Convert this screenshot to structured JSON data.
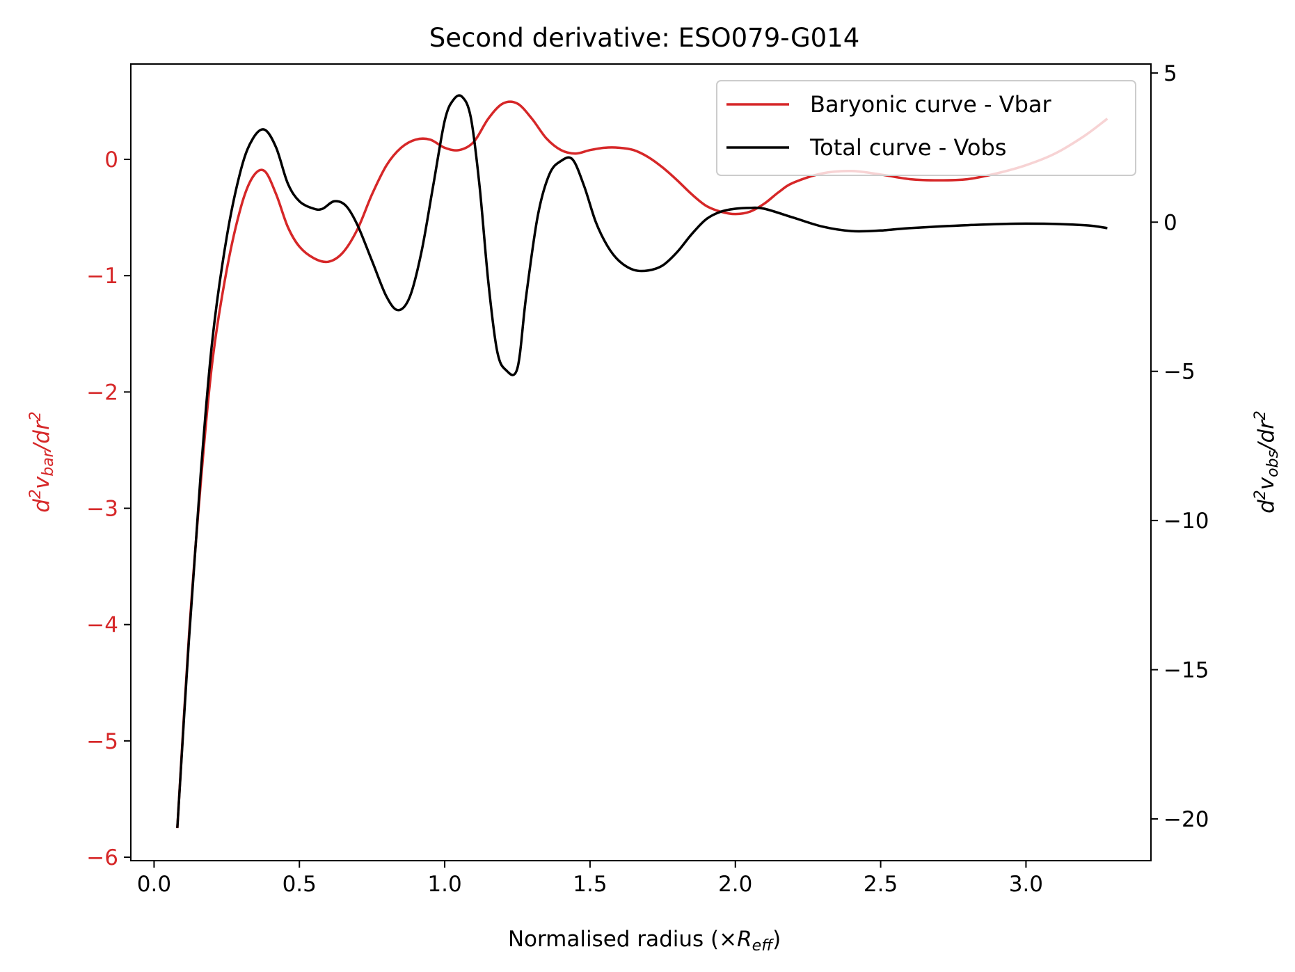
{
  "chart_data": {
    "type": "line",
    "title": "Second derivative: ESO079-G014",
    "xlabel": "Normalised radius (×R_eff)",
    "xlabel_parts": {
      "prefix": "Normalised radius (×",
      "var": "R",
      "sub": "eff",
      "suffix": ")"
    },
    "ylabel_left": "d²v_bar/dr²",
    "ylabel_left_parts": {
      "d": "d",
      "sup": "2",
      "v": "v",
      "sub": "bar",
      "rest": "/dr",
      "sup2": "2"
    },
    "ylabel_right": "d²v_obs/dr²",
    "ylabel_right_parts": {
      "d": "d",
      "sup": "2",
      "v": "v",
      "sub": "obs",
      "rest": "/dr",
      "sup2": "2"
    },
    "xlim": [
      -0.08,
      3.43
    ],
    "ylim_left": [
      -6.03,
      0.82
    ],
    "ylim_right": [
      -21.4,
      5.3
    ],
    "x_ticks": [
      0.0,
      0.5,
      1.0,
      1.5,
      2.0,
      2.5,
      3.0
    ],
    "x_tick_labels": [
      "0.0",
      "0.5",
      "1.0",
      "1.5",
      "2.0",
      "2.5",
      "3.0"
    ],
    "y_left_ticks": [
      -6,
      -5,
      -4,
      -3,
      -2,
      -1,
      0
    ],
    "y_left_tick_labels": [
      "−6",
      "−5",
      "−4",
      "−3",
      "−2",
      "−1",
      "0"
    ],
    "y_right_ticks": [
      -20,
      -15,
      -10,
      -5,
      0,
      5
    ],
    "y_right_tick_labels": [
      "−20",
      "−15",
      "−10",
      "−5",
      "0",
      "5"
    ],
    "legend_position": "top-right",
    "colors": {
      "bar": "#d62728",
      "obs": "#000000"
    },
    "series": [
      {
        "name": "Baryonic curve - Vbar",
        "axis": "left",
        "color": "#d62728",
        "x": [
          0.08,
          0.12,
          0.16,
          0.2,
          0.25,
          0.3,
          0.34,
          0.38,
          0.42,
          0.46,
          0.5,
          0.55,
          0.6,
          0.65,
          0.7,
          0.75,
          0.8,
          0.85,
          0.9,
          0.95,
          1.0,
          1.05,
          1.1,
          1.15,
          1.2,
          1.25,
          1.3,
          1.35,
          1.4,
          1.45,
          1.5,
          1.55,
          1.6,
          1.65,
          1.7,
          1.75,
          1.8,
          1.85,
          1.9,
          1.95,
          2.0,
          2.05,
          2.1,
          2.15,
          2.2,
          2.3,
          2.4,
          2.5,
          2.6,
          2.7,
          2.8,
          2.9,
          3.0,
          3.1,
          3.2,
          3.28
        ],
        "y": [
          -5.75,
          -4.1,
          -2.8,
          -1.75,
          -0.95,
          -0.4,
          -0.15,
          -0.1,
          -0.3,
          -0.58,
          -0.75,
          -0.85,
          -0.88,
          -0.8,
          -0.6,
          -0.3,
          -0.05,
          0.1,
          0.17,
          0.17,
          0.1,
          0.08,
          0.15,
          0.35,
          0.48,
          0.48,
          0.35,
          0.18,
          0.08,
          0.05,
          0.08,
          0.1,
          0.1,
          0.08,
          0.02,
          -0.07,
          -0.18,
          -0.3,
          -0.4,
          -0.45,
          -0.47,
          -0.45,
          -0.38,
          -0.28,
          -0.2,
          -0.12,
          -0.1,
          -0.13,
          -0.17,
          -0.18,
          -0.17,
          -0.12,
          -0.05,
          0.05,
          0.2,
          0.35
        ]
      },
      {
        "name": "Total curve - Vobs",
        "axis": "right",
        "color": "#000000",
        "x": [
          0.08,
          0.12,
          0.16,
          0.2,
          0.25,
          0.3,
          0.34,
          0.38,
          0.42,
          0.46,
          0.5,
          0.55,
          0.58,
          0.62,
          0.66,
          0.7,
          0.75,
          0.8,
          0.84,
          0.88,
          0.92,
          0.96,
          1.0,
          1.03,
          1.06,
          1.09,
          1.12,
          1.15,
          1.18,
          1.21,
          1.25,
          1.28,
          1.32,
          1.36,
          1.4,
          1.44,
          1.48,
          1.52,
          1.56,
          1.6,
          1.65,
          1.7,
          1.75,
          1.8,
          1.85,
          1.9,
          1.95,
          2.0,
          2.05,
          2.1,
          2.2,
          2.3,
          2.4,
          2.5,
          2.6,
          2.8,
          3.0,
          3.2,
          3.28
        ],
        "y": [
          -20.3,
          -14.0,
          -8.5,
          -4.0,
          -0.5,
          1.8,
          2.8,
          3.1,
          2.5,
          1.3,
          0.7,
          0.45,
          0.45,
          0.7,
          0.55,
          -0.1,
          -1.3,
          -2.5,
          -2.95,
          -2.5,
          -1.0,
          1.2,
          3.4,
          4.1,
          4.2,
          3.5,
          1.2,
          -2.0,
          -4.3,
          -4.95,
          -4.9,
          -2.5,
          0.2,
          1.6,
          2.05,
          2.1,
          1.2,
          0.0,
          -0.8,
          -1.3,
          -1.6,
          -1.62,
          -1.45,
          -1.0,
          -0.4,
          0.1,
          0.35,
          0.45,
          0.48,
          0.45,
          0.15,
          -0.15,
          -0.3,
          -0.28,
          -0.2,
          -0.1,
          -0.05,
          -0.1,
          -0.2
        ]
      }
    ]
  }
}
